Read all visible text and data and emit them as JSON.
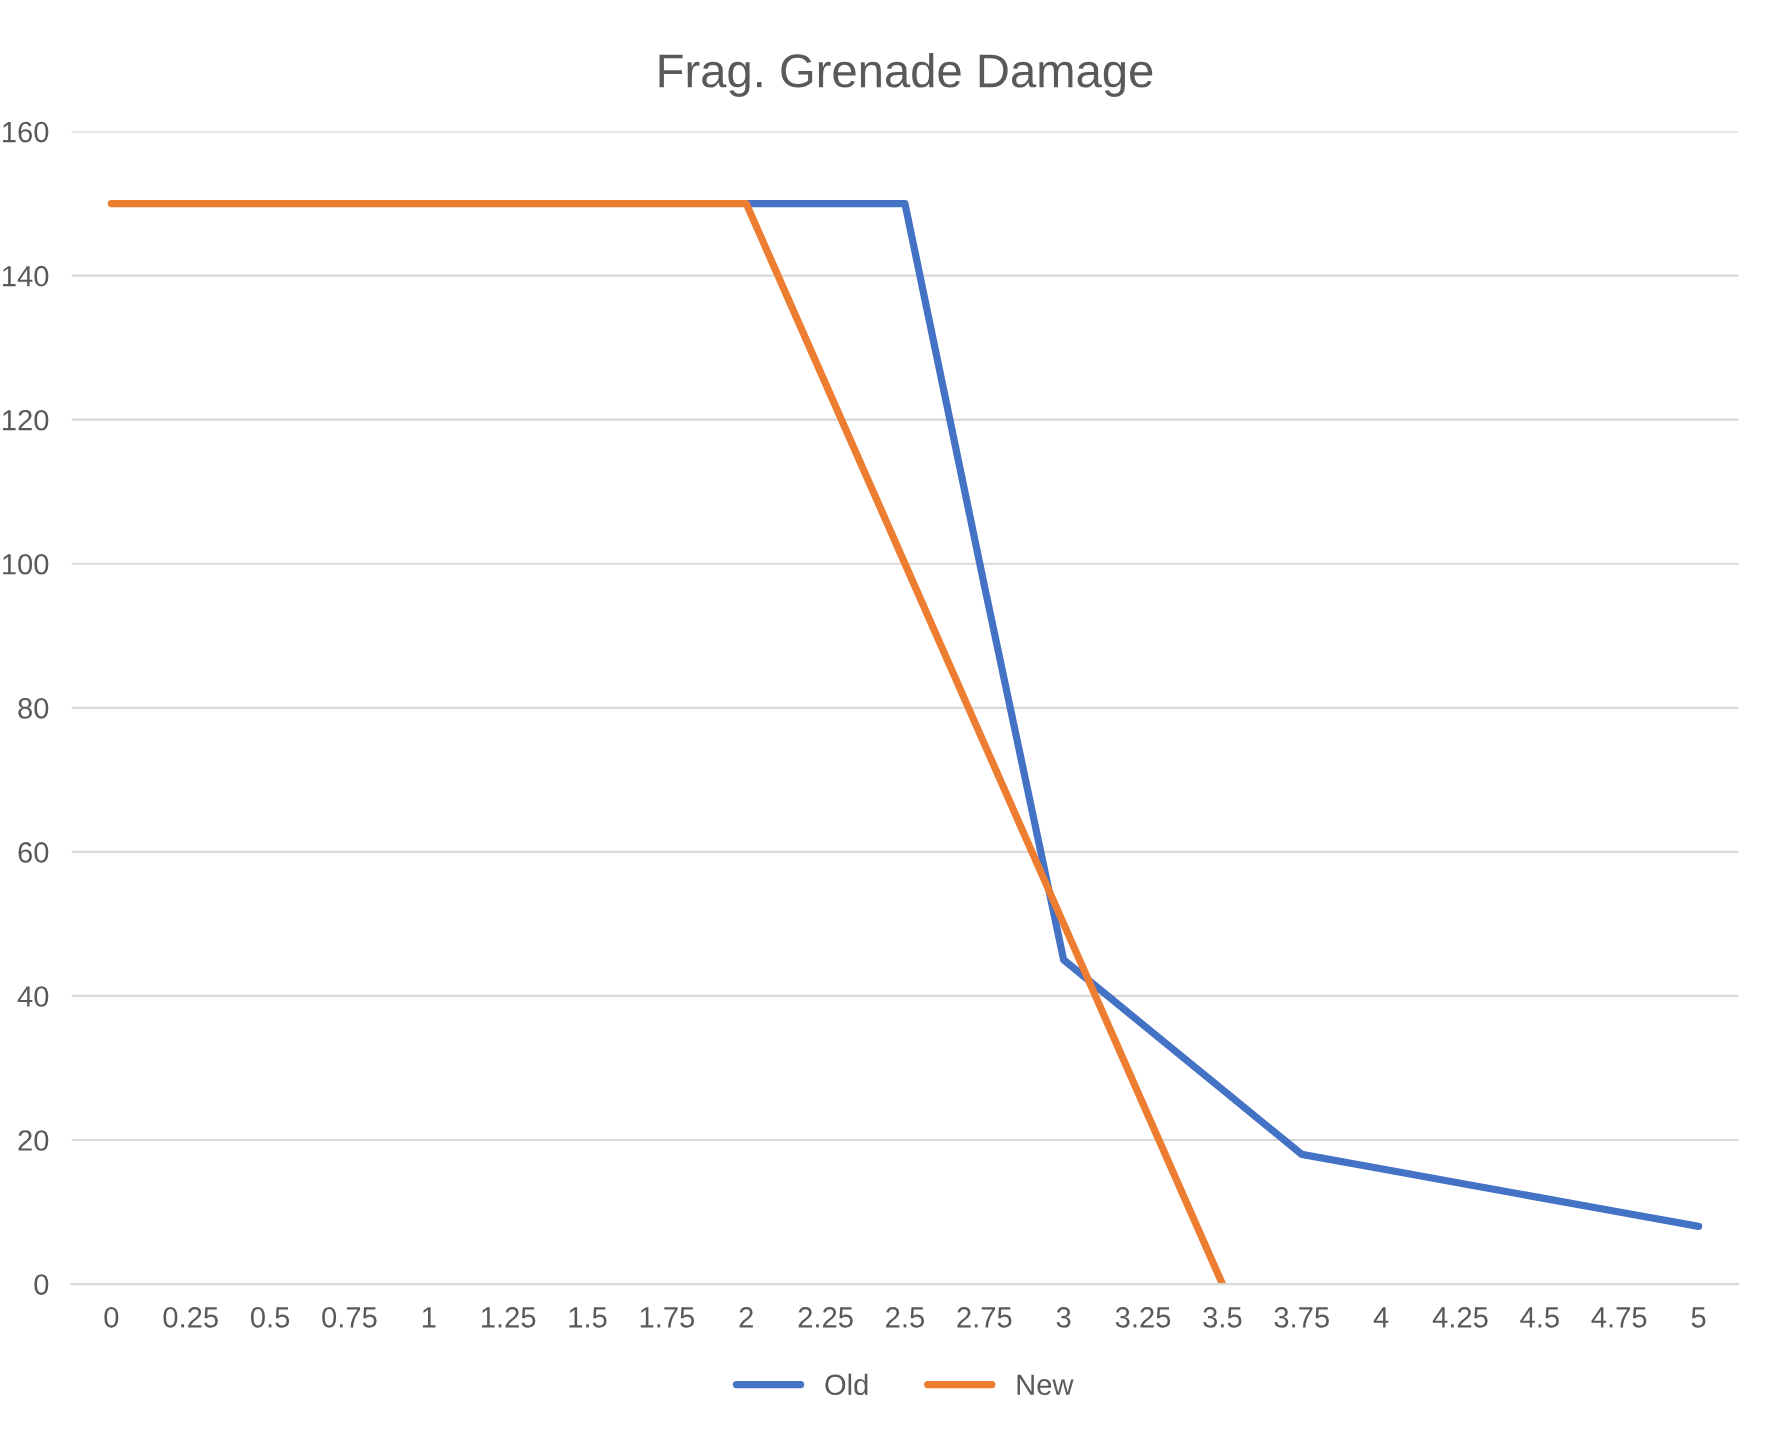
{
  "chart_data": {
    "type": "line",
    "title": "Frag. Grenade Damage",
    "categories": [
      "0",
      "0.25",
      "0.5",
      "0.75",
      "1",
      "1.25",
      "1.5",
      "1.75",
      "2",
      "2.25",
      "2.5",
      "2.75",
      "3",
      "3.25",
      "3.5",
      "3.75",
      "4",
      "4.25",
      "4.5",
      "4.75",
      "5"
    ],
    "series": [
      {
        "name": "Old",
        "color": "#4472c4",
        "values": [
          null,
          null,
          null,
          null,
          null,
          null,
          null,
          null,
          150,
          150,
          150,
          97,
          45,
          36,
          27,
          18,
          16,
          14,
          12,
          10,
          8
        ]
      },
      {
        "name": "New",
        "color": "#ed7d31",
        "values": [
          150,
          150,
          150,
          150,
          150,
          150,
          150,
          150,
          150,
          125,
          100,
          75,
          50,
          25,
          0,
          null,
          null,
          null,
          null,
          null,
          null
        ]
      }
    ],
    "ylim": [
      0,
      160
    ],
    "yticks": [
      0,
      20,
      40,
      60,
      80,
      100,
      120,
      140,
      160
    ],
    "grid": "y",
    "legend": "bottom",
    "marker": "none",
    "line_style": "solid"
  }
}
